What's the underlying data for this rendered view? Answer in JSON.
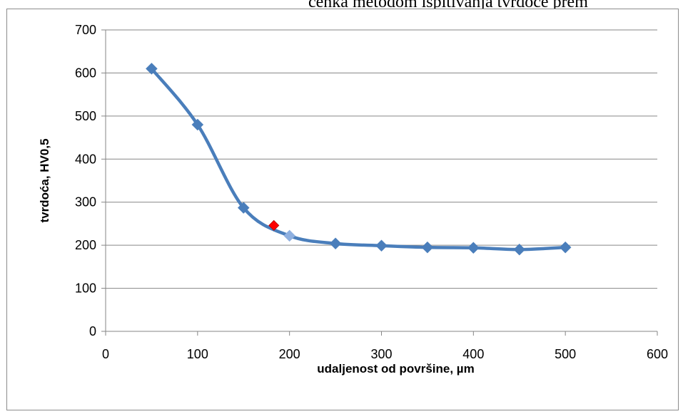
{
  "caption": "cenka metodom ispitivanja tvrdoće prem",
  "chart_data": {
    "type": "line",
    "xlabel": "udaljenost od površine, µm",
    "ylabel": "tvrdoća, HV0,5",
    "xlim": [
      0,
      600
    ],
    "ylim": [
      0,
      700
    ],
    "x_ticks": [
      0,
      100,
      200,
      300,
      400,
      500,
      600
    ],
    "y_ticks": [
      0,
      100,
      200,
      300,
      400,
      500,
      600,
      700
    ],
    "grid": "horizontal",
    "series": [
      {
        "x": [
          50,
          100,
          150,
          200,
          250,
          300,
          350,
          400,
          450,
          500
        ],
        "y": [
          610,
          480,
          287,
          222,
          204,
          199,
          195,
          194,
          190,
          195
        ],
        "color": "#4a7ebb",
        "marker": "diamond",
        "smooth": true
      }
    ],
    "highlight_points": [
      {
        "x": 183,
        "y": 246,
        "color": "#ff0000"
      }
    ],
    "highlight_marker": {
      "x": 200,
      "y": 222,
      "color": "#8fb0e0"
    }
  }
}
